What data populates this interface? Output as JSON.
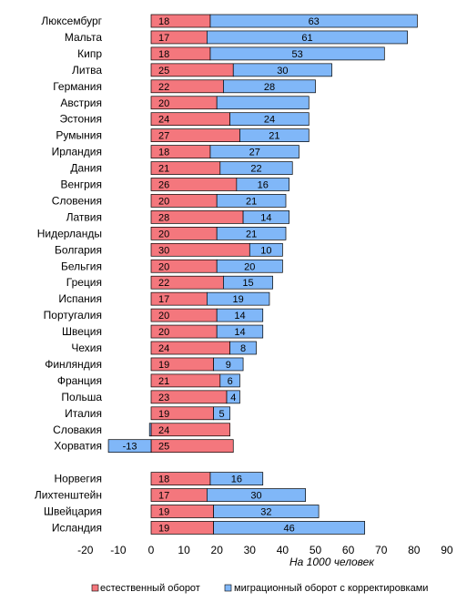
{
  "chart_data": {
    "type": "bar",
    "orientation": "horizontal",
    "stacked": true,
    "unit_note": "На 1000 человек",
    "categories": [
      "Люксембург",
      "Мальта",
      "Кипр",
      "Литва",
      "Германия",
      "Австрия",
      "Эстония",
      "Румыния",
      "Ирландия",
      "Дания",
      "Венгрия",
      "Словения",
      "Латвия",
      "Нидерланды",
      "Болгария",
      "Бельгия",
      "Греция",
      "Испания",
      "Португалия",
      "Швеция",
      "Чехия",
      "Финляндия",
      "Франция",
      "Польша",
      "Италия",
      "Словакия",
      "Хорватия",
      "",
      "Норвегия",
      "Лихтенштейн",
      "Швейцария",
      "Исландия"
    ],
    "series": [
      {
        "name": "естественный оборот",
        "color": "#f4777d",
        "values": [
          18,
          17,
          18,
          25,
          22,
          20,
          24,
          27,
          18,
          21,
          26,
          20,
          28,
          20,
          30,
          20,
          22,
          17,
          20,
          20,
          24,
          19,
          21,
          23,
          19,
          24,
          25,
          null,
          18,
          17,
          19,
          19
        ],
        "labels": [
          "18",
          "17",
          "18",
          "25",
          "22",
          "20",
          "24",
          "27",
          "18",
          "21",
          "26",
          "20",
          "28",
          "20",
          "30",
          "20",
          "22",
          "17",
          "20",
          "20",
          "24",
          "19",
          "21",
          "23",
          "19",
          "24",
          "25",
          "",
          "18",
          "17",
          "19",
          "19"
        ]
      },
      {
        "name": "миграционный оборот с корректировками",
        "color": "#80b7f8",
        "values": [
          63,
          61,
          53,
          30,
          28,
          28,
          24,
          21,
          27,
          22,
          16,
          21,
          14,
          21,
          10,
          20,
          15,
          19,
          14,
          14,
          8,
          9,
          6,
          4,
          5,
          -0.5,
          -13,
          null,
          16,
          30,
          32,
          46
        ],
        "labels": [
          "63",
          "61",
          "53",
          "30",
          "28",
          "",
          "24",
          "21",
          "27",
          "22",
          "16",
          "21",
          "14",
          "21",
          "10",
          "20",
          "15",
          "19",
          "14",
          "14",
          "8",
          "9",
          "6",
          "4",
          "5",
          "",
          "-13",
          "",
          "16",
          "30",
          "32",
          "46"
        ]
      }
    ],
    "xlim": [
      -20,
      90
    ],
    "xticks": [
      -20,
      -10,
      0,
      10,
      20,
      30,
      40,
      50,
      60,
      70,
      80,
      90
    ],
    "tick_labels": [
      "-20",
      "-10",
      "0",
      "10",
      "20",
      "30",
      "40",
      "50",
      "60",
      "70",
      "80",
      "90"
    ],
    "grid": false,
    "legend_position": "bottom"
  }
}
